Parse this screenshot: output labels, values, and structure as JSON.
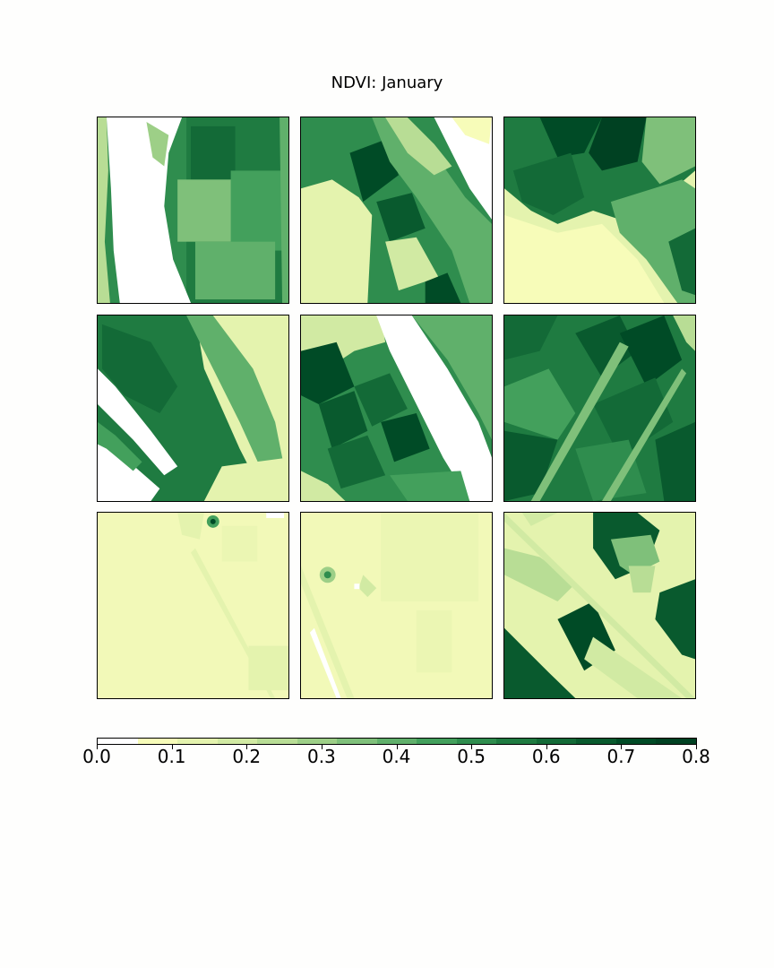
{
  "title": "NDVI: January",
  "chart_data": {
    "type": "heatmap",
    "title": "NDVI: January",
    "panels": [
      {
        "row": 1,
        "col": 1,
        "description": "river and fields"
      },
      {
        "row": 1,
        "col": 2,
        "description": "river bank and fields"
      },
      {
        "row": 1,
        "col": 3,
        "description": "fields"
      },
      {
        "row": 2,
        "col": 1,
        "description": "fields"
      },
      {
        "row": 2,
        "col": 2,
        "description": "river and fields"
      },
      {
        "row": 2,
        "col": 3,
        "description": "fields"
      },
      {
        "row": 3,
        "col": 1,
        "description": "low vegetation"
      },
      {
        "row": 3,
        "col": 2,
        "description": "low vegetation"
      },
      {
        "row": 3,
        "col": 3,
        "description": "mixed fields"
      }
    ],
    "colorbar": {
      "cmap": "YlGn",
      "range": [
        0.0,
        0.8
      ],
      "ticks": [
        "0.0",
        "0.1",
        "0.2",
        "0.3",
        "0.4",
        "0.5",
        "0.6",
        "0.7",
        "0.8"
      ],
      "colors": [
        "#ffffff",
        "#f7fcb9",
        "#e4f3ae",
        "#d1eaa3",
        "#b8dd95",
        "#9dcf87",
        "#7fc07a",
        "#60b06b",
        "#43a05c",
        "#2f8d4e",
        "#1f7b41",
        "#136a37",
        "#095a2e",
        "#004b26",
        "#004122"
      ]
    }
  }
}
